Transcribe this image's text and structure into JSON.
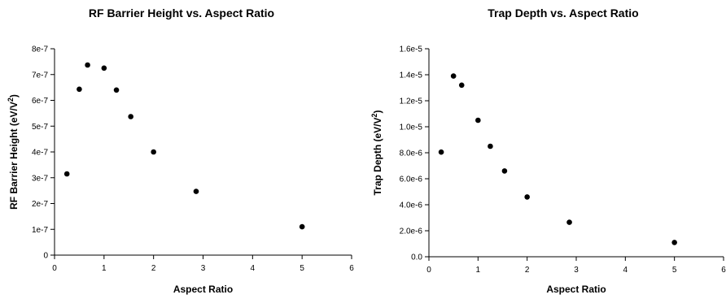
{
  "chart_data": [
    {
      "type": "scatter",
      "title": "RF Barrier Height vs. Aspect Ratio",
      "xlabel": "Aspect Ratio",
      "ylabel": "RF Barrier Height (eV/V²)",
      "ylabel_main": "RF Barrier Height (eV/V",
      "ylabel_sup": "2",
      "ylabel_end": ")",
      "xlim": [
        0,
        6
      ],
      "ylim": [
        0,
        8e-07
      ],
      "grid": false,
      "legend": "none",
      "x_ticks": [
        0,
        1,
        2,
        3,
        4,
        5,
        6
      ],
      "x_tick_labels": [
        "0",
        "1",
        "2",
        "3",
        "4",
        "5",
        "6"
      ],
      "y_ticks": [
        0,
        1e-07,
        2e-07,
        3e-07,
        4e-07,
        5e-07,
        6e-07,
        7e-07,
        8e-07
      ],
      "y_tick_labels": [
        "0",
        "1e-7",
        "2e-7",
        "3e-7",
        "4e-7",
        "5e-7",
        "6e-7",
        "7e-7",
        "8e-7"
      ],
      "x": [
        0.25,
        0.5,
        0.667,
        1.0,
        1.25,
        1.54,
        2.0,
        2.86,
        5.0
      ],
      "y": [
        3.15e-07,
        6.43e-07,
        7.37e-07,
        7.25e-07,
        6.4e-07,
        5.37e-07,
        4e-07,
        2.47e-07,
        1.1e-07
      ]
    },
    {
      "type": "scatter",
      "title": "Trap Depth vs. Aspect Ratio",
      "xlabel": "Aspect Ratio",
      "ylabel": "Trap Depth (eV/V²)",
      "ylabel_main": "Trap Depth (eV/V",
      "ylabel_sup": "2",
      "ylabel_end": ")",
      "xlim": [
        0,
        6
      ],
      "ylim": [
        0,
        1.6e-05
      ],
      "grid": false,
      "legend": "none",
      "x_ticks": [
        0,
        1,
        2,
        3,
        4,
        5,
        6
      ],
      "x_tick_labels": [
        "0",
        "1",
        "2",
        "3",
        "4",
        "5",
        "6"
      ],
      "y_ticks": [
        0,
        2e-06,
        4e-06,
        6e-06,
        8e-06,
        1e-05,
        1.2e-05,
        1.4e-05,
        1.6e-05
      ],
      "y_tick_labels": [
        "0.0",
        "2.0e-6",
        "4.0e-6",
        "6.0e-6",
        "8.0e-6",
        "1.0e-5",
        "1.2e-5",
        "1.4e-5",
        "1.6e-5"
      ],
      "x": [
        0.25,
        0.5,
        0.667,
        1.0,
        1.25,
        1.54,
        2.0,
        2.86,
        5.0
      ],
      "y": [
        8.05e-06,
        1.39e-05,
        1.32e-05,
        1.05e-05,
        8.5e-06,
        6.6e-06,
        4.6e-06,
        2.65e-06,
        1.1e-06
      ]
    }
  ]
}
